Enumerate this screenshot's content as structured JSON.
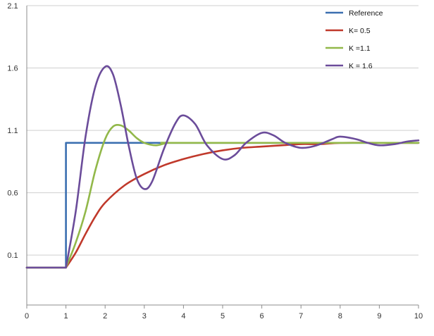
{
  "chart_data": {
    "type": "line",
    "title": "",
    "xlabel": "",
    "ylabel": "",
    "xlim": [
      0,
      10
    ],
    "ylim": [
      -0.3,
      2.1
    ],
    "x_ticks": [
      "0",
      "1",
      "2",
      "3",
      "4",
      "5",
      "6",
      "7",
      "8",
      "9",
      "10"
    ],
    "y_ticks": [
      "0.1",
      "0.6",
      "1.1",
      "1.6",
      "2.1"
    ],
    "grid": "horizontal",
    "legend_position": "top-right",
    "series": [
      {
        "name": "Reference",
        "color": "#3b6fb0",
        "points": [
          [
            0,
            -0.0
          ],
          [
            1,
            -0.0
          ],
          [
            1,
            1.0
          ],
          [
            10,
            1.0
          ]
        ]
      },
      {
        "name": "K= 0.5",
        "color": "#c0392b",
        "points": [
          [
            0,
            0.0
          ],
          [
            1,
            0.0
          ],
          [
            1.25,
            0.12
          ],
          [
            1.5,
            0.27
          ],
          [
            1.75,
            0.41
          ],
          [
            2.0,
            0.52
          ],
          [
            2.5,
            0.66
          ],
          [
            3.0,
            0.75
          ],
          [
            3.5,
            0.82
          ],
          [
            4.0,
            0.87
          ],
          [
            4.5,
            0.91
          ],
          [
            5.0,
            0.94
          ],
          [
            5.5,
            0.96
          ],
          [
            6.0,
            0.97
          ],
          [
            6.5,
            0.98
          ],
          [
            7.0,
            0.99
          ],
          [
            7.5,
            0.99
          ],
          [
            8.0,
            1.0
          ],
          [
            9.0,
            1.0
          ],
          [
            10.0,
            1.0
          ]
        ]
      },
      {
        "name": "K =1.1",
        "color": "#92b84a",
        "points": [
          [
            0,
            0.0
          ],
          [
            1,
            0.0
          ],
          [
            1.25,
            0.2
          ],
          [
            1.5,
            0.45
          ],
          [
            1.75,
            0.78
          ],
          [
            2.0,
            1.03
          ],
          [
            2.2,
            1.13
          ],
          [
            2.4,
            1.14
          ],
          [
            2.6,
            1.1
          ],
          [
            2.8,
            1.04
          ],
          [
            3.0,
            1.0
          ],
          [
            3.3,
            0.98
          ],
          [
            3.6,
            1.0
          ],
          [
            4.0,
            1.0
          ],
          [
            10.0,
            1.0
          ]
        ]
      },
      {
        "name": "K = 1.6",
        "color": "#6b4c9a",
        "points": [
          [
            0,
            0.0
          ],
          [
            1,
            0.0
          ],
          [
            1.25,
            0.45
          ],
          [
            1.5,
            1.05
          ],
          [
            1.75,
            1.45
          ],
          [
            2.0,
            1.61
          ],
          [
            2.2,
            1.55
          ],
          [
            2.4,
            1.3
          ],
          [
            2.6,
            0.98
          ],
          [
            2.8,
            0.72
          ],
          [
            3.0,
            0.63
          ],
          [
            3.2,
            0.69
          ],
          [
            3.5,
            0.95
          ],
          [
            3.8,
            1.16
          ],
          [
            4.0,
            1.22
          ],
          [
            4.3,
            1.15
          ],
          [
            4.6,
            0.98
          ],
          [
            5.0,
            0.87
          ],
          [
            5.3,
            0.9
          ],
          [
            5.6,
            1.0
          ],
          [
            6.0,
            1.08
          ],
          [
            6.3,
            1.06
          ],
          [
            6.6,
            1.0
          ],
          [
            7.0,
            0.96
          ],
          [
            7.4,
            0.98
          ],
          [
            7.8,
            1.03
          ],
          [
            8.0,
            1.05
          ],
          [
            8.4,
            1.03
          ],
          [
            8.7,
            1.0
          ],
          [
            9.0,
            0.98
          ],
          [
            9.4,
            0.99
          ],
          [
            9.7,
            1.01
          ],
          [
            10.0,
            1.02
          ]
        ]
      }
    ]
  }
}
